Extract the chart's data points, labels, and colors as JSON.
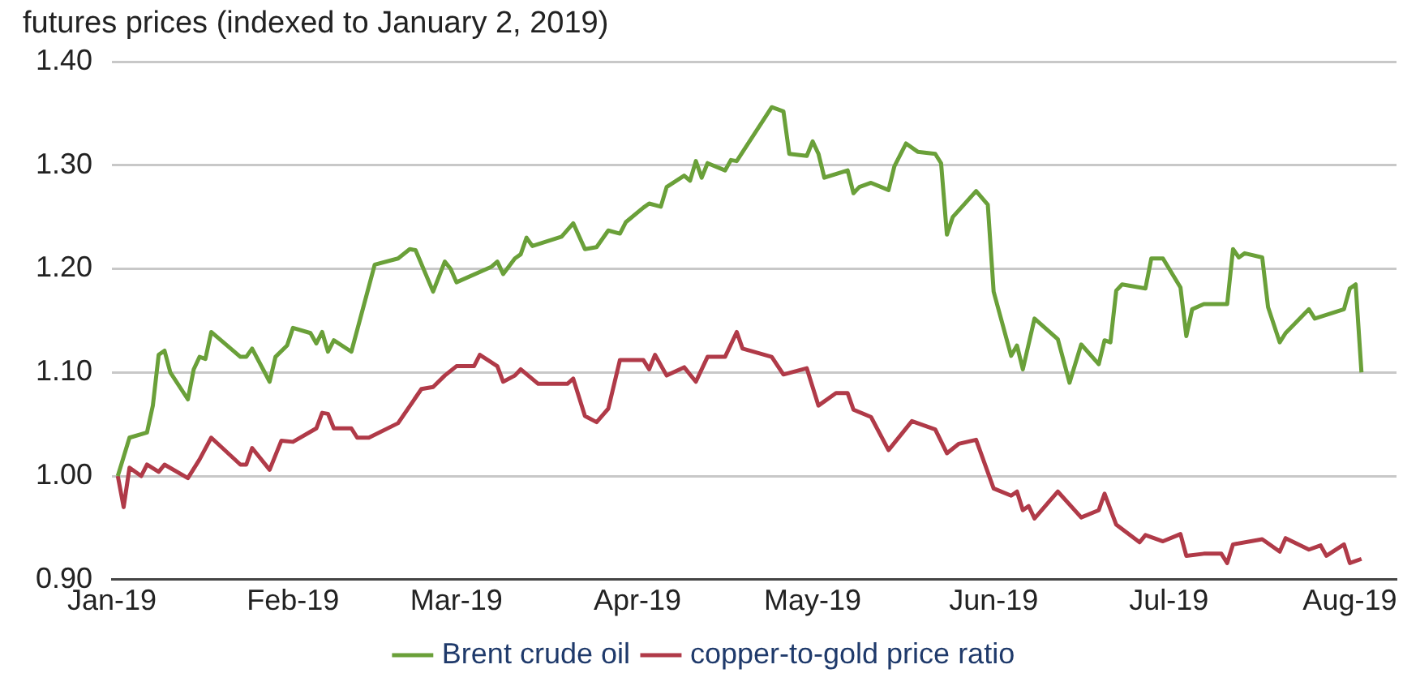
{
  "chart_data": {
    "type": "line",
    "ylabel": "futures prices (indexed to January 2, 2019)",
    "xlim": [
      "2019-01-01",
      "2019-08-09"
    ],
    "xticks": [
      {
        "value": "2019-01-01",
        "label": "Jan-19"
      },
      {
        "value": "2019-02-01",
        "label": "Feb-19"
      },
      {
        "value": "2019-03-01",
        "label": "Mar-19"
      },
      {
        "value": "2019-04-01",
        "label": "Apr-19"
      },
      {
        "value": "2019-05-01",
        "label": "May-19"
      },
      {
        "value": "2019-06-01",
        "label": "Jun-19"
      },
      {
        "value": "2019-07-01",
        "label": "Jul-19"
      },
      {
        "value": "2019-08-01",
        "label": "Aug-19"
      }
    ],
    "ylim": [
      0.9,
      1.4
    ],
    "yticks": [
      {
        "value": 0.9,
        "label": "0.90"
      },
      {
        "value": 1.0,
        "label": "1.00"
      },
      {
        "value": 1.1,
        "label": "1.10"
      },
      {
        "value": 1.2,
        "label": "1.20"
      },
      {
        "value": 1.3,
        "label": "1.30"
      },
      {
        "value": 1.4,
        "label": "1.40"
      }
    ],
    "grid": "y",
    "legend": "bottom",
    "marker": "none",
    "line_style": "solid",
    "series": [
      {
        "name": "Brent crude oil",
        "color": "#6aa039",
        "x": [
          "2019-01-02",
          "2019-01-04",
          "2019-01-07",
          "2019-01-08",
          "2019-01-09",
          "2019-01-10",
          "2019-01-11",
          "2019-01-14",
          "2019-01-15",
          "2019-01-16",
          "2019-01-17",
          "2019-01-18",
          "2019-01-23",
          "2019-01-24",
          "2019-01-25",
          "2019-01-28",
          "2019-01-29",
          "2019-01-31",
          "2019-02-01",
          "2019-02-04",
          "2019-02-05",
          "2019-02-06",
          "2019-02-07",
          "2019-02-08",
          "2019-02-11",
          "2019-02-15",
          "2019-02-19",
          "2019-02-21",
          "2019-02-22",
          "2019-02-25",
          "2019-02-27",
          "2019-02-28",
          "2019-03-01",
          "2019-03-07",
          "2019-03-08",
          "2019-03-09",
          "2019-03-11",
          "2019-03-12",
          "2019-03-13",
          "2019-03-14",
          "2019-03-19",
          "2019-03-21",
          "2019-03-23",
          "2019-03-25",
          "2019-03-27",
          "2019-03-29",
          "2019-03-30",
          "2019-04-02",
          "2019-04-03",
          "2019-04-05",
          "2019-04-06",
          "2019-04-09",
          "2019-04-10",
          "2019-04-11",
          "2019-04-12",
          "2019-04-13",
          "2019-04-16",
          "2019-04-17",
          "2019-04-18",
          "2019-04-24",
          "2019-04-26",
          "2019-04-27",
          "2019-04-30",
          "2019-05-01",
          "2019-05-02",
          "2019-05-03",
          "2019-05-07",
          "2019-05-08",
          "2019-05-09",
          "2019-05-11",
          "2019-05-14",
          "2019-05-15",
          "2019-05-17",
          "2019-05-19",
          "2019-05-22",
          "2019-05-23",
          "2019-05-24",
          "2019-05-25",
          "2019-05-29",
          "2019-05-31",
          "2019-06-01",
          "2019-06-04",
          "2019-06-05",
          "2019-06-06",
          "2019-06-08",
          "2019-06-12",
          "2019-06-14",
          "2019-06-16",
          "2019-06-19",
          "2019-06-20",
          "2019-06-21",
          "2019-06-22",
          "2019-06-23",
          "2019-06-27",
          "2019-06-28",
          "2019-06-30",
          "2019-07-03",
          "2019-07-04",
          "2019-07-05",
          "2019-07-07",
          "2019-07-11",
          "2019-07-12",
          "2019-07-13",
          "2019-07-14",
          "2019-07-17",
          "2019-07-18",
          "2019-07-20",
          "2019-07-21",
          "2019-07-25",
          "2019-07-26",
          "2019-07-31",
          "2019-08-01",
          "2019-08-02",
          "2019-08-03"
        ],
        "values": [
          1.0,
          1.037,
          1.042,
          1.068,
          1.117,
          1.121,
          1.1,
          1.074,
          1.103,
          1.115,
          1.113,
          1.139,
          1.115,
          1.115,
          1.123,
          1.091,
          1.115,
          1.126,
          1.143,
          1.138,
          1.128,
          1.139,
          1.12,
          1.131,
          1.12,
          1.204,
          1.21,
          1.219,
          1.218,
          1.178,
          1.207,
          1.2,
          1.187,
          1.202,
          1.207,
          1.195,
          1.21,
          1.214,
          1.23,
          1.222,
          1.231,
          1.244,
          1.219,
          1.221,
          1.237,
          1.234,
          1.245,
          1.259,
          1.263,
          1.26,
          1.279,
          1.29,
          1.285,
          1.304,
          1.288,
          1.302,
          1.295,
          1.305,
          1.304,
          1.356,
          1.352,
          1.311,
          1.309,
          1.323,
          1.311,
          1.288,
          1.295,
          1.273,
          1.279,
          1.283,
          1.276,
          1.299,
          1.321,
          1.313,
          1.311,
          1.302,
          1.233,
          1.25,
          1.275,
          1.262,
          1.178,
          1.116,
          1.126,
          1.103,
          1.152,
          1.132,
          1.09,
          1.127,
          1.108,
          1.131,
          1.129,
          1.179,
          1.185,
          1.181,
          1.21,
          1.21,
          1.182,
          1.135,
          1.161,
          1.166,
          1.166,
          1.219,
          1.211,
          1.215,
          1.211,
          1.163,
          1.129,
          1.138,
          1.161,
          1.152,
          1.161,
          1.181,
          1.185,
          1.1
        ]
      },
      {
        "name": "copper-to-gold price ratio",
        "color": "#b03a48",
        "x": [
          "2019-01-02",
          "2019-01-03",
          "2019-01-04",
          "2019-01-06",
          "2019-01-07",
          "2019-01-09",
          "2019-01-10",
          "2019-01-14",
          "2019-01-16",
          "2019-01-18",
          "2019-01-23",
          "2019-01-24",
          "2019-01-25",
          "2019-01-28",
          "2019-01-30",
          "2019-02-01",
          "2019-02-05",
          "2019-02-06",
          "2019-02-07",
          "2019-02-08",
          "2019-02-11",
          "2019-02-12",
          "2019-02-14",
          "2019-02-19",
          "2019-02-23",
          "2019-02-25",
          "2019-02-27",
          "2019-03-01",
          "2019-03-04",
          "2019-03-05",
          "2019-03-08",
          "2019-03-09",
          "2019-03-11",
          "2019-03-12",
          "2019-03-15",
          "2019-03-20",
          "2019-03-21",
          "2019-03-23",
          "2019-03-25",
          "2019-03-27",
          "2019-03-29",
          "2019-04-02",
          "2019-04-03",
          "2019-04-04",
          "2019-04-06",
          "2019-04-09",
          "2019-04-11",
          "2019-04-13",
          "2019-04-16",
          "2019-04-18",
          "2019-04-19",
          "2019-04-24",
          "2019-04-26",
          "2019-04-30",
          "2019-05-02",
          "2019-05-05",
          "2019-05-07",
          "2019-05-08",
          "2019-05-11",
          "2019-05-14",
          "2019-05-18",
          "2019-05-22",
          "2019-05-24",
          "2019-05-26",
          "2019-05-29",
          "2019-06-01",
          "2019-06-04",
          "2019-06-05",
          "2019-06-06",
          "2019-06-07",
          "2019-06-08",
          "2019-06-12",
          "2019-06-16",
          "2019-06-19",
          "2019-06-20",
          "2019-06-22",
          "2019-06-26",
          "2019-06-27",
          "2019-06-30",
          "2019-07-03",
          "2019-07-04",
          "2019-07-07",
          "2019-07-10",
          "2019-07-11",
          "2019-07-12",
          "2019-07-17",
          "2019-07-20",
          "2019-07-21",
          "2019-07-25",
          "2019-07-27",
          "2019-07-28",
          "2019-07-31",
          "2019-08-01",
          "2019-08-03"
        ],
        "values": [
          1.0,
          0.97,
          1.008,
          1.0,
          1.011,
          1.004,
          1.011,
          0.998,
          1.016,
          1.037,
          1.011,
          1.011,
          1.027,
          1.006,
          1.034,
          1.033,
          1.046,
          1.061,
          1.06,
          1.046,
          1.046,
          1.037,
          1.037,
          1.051,
          1.084,
          1.086,
          1.097,
          1.106,
          1.106,
          1.117,
          1.106,
          1.091,
          1.097,
          1.103,
          1.089,
          1.089,
          1.094,
          1.058,
          1.052,
          1.065,
          1.112,
          1.112,
          1.103,
          1.117,
          1.097,
          1.105,
          1.091,
          1.115,
          1.115,
          1.139,
          1.123,
          1.115,
          1.098,
          1.104,
          1.068,
          1.08,
          1.08,
          1.064,
          1.057,
          1.025,
          1.053,
          1.045,
          1.022,
          1.031,
          1.035,
          0.988,
          0.981,
          0.985,
          0.967,
          0.971,
          0.959,
          0.985,
          0.96,
          0.967,
          0.983,
          0.953,
          0.936,
          0.943,
          0.937,
          0.944,
          0.923,
          0.925,
          0.925,
          0.916,
          0.934,
          0.939,
          0.927,
          0.94,
          0.929,
          0.933,
          0.923,
          0.934,
          0.916,
          0.92
        ]
      }
    ]
  }
}
